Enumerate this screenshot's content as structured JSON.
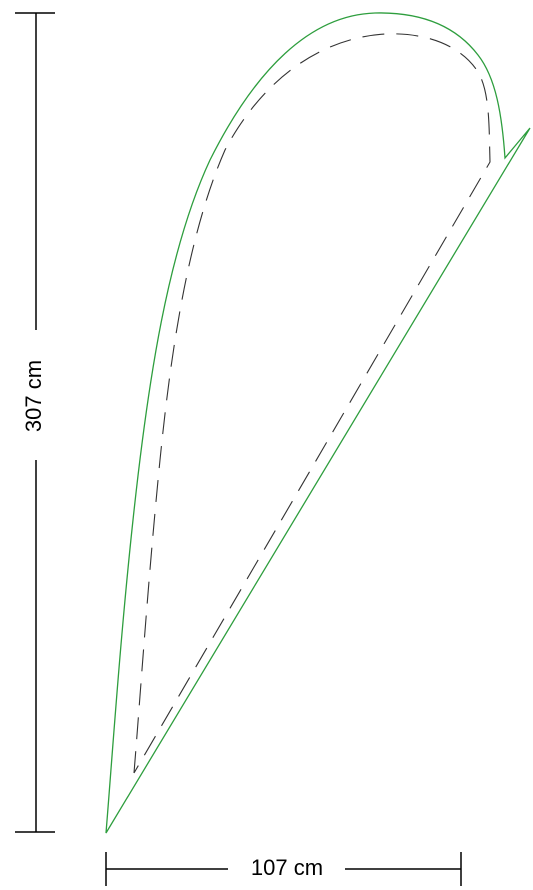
{
  "dimensions": {
    "height_label": "307 cm",
    "width_label": "107 cm"
  },
  "colors": {
    "flag_outline": "#2e9e3e",
    "sew_line": "#333333",
    "dimension_line": "#000000",
    "background": "#ffffff"
  }
}
